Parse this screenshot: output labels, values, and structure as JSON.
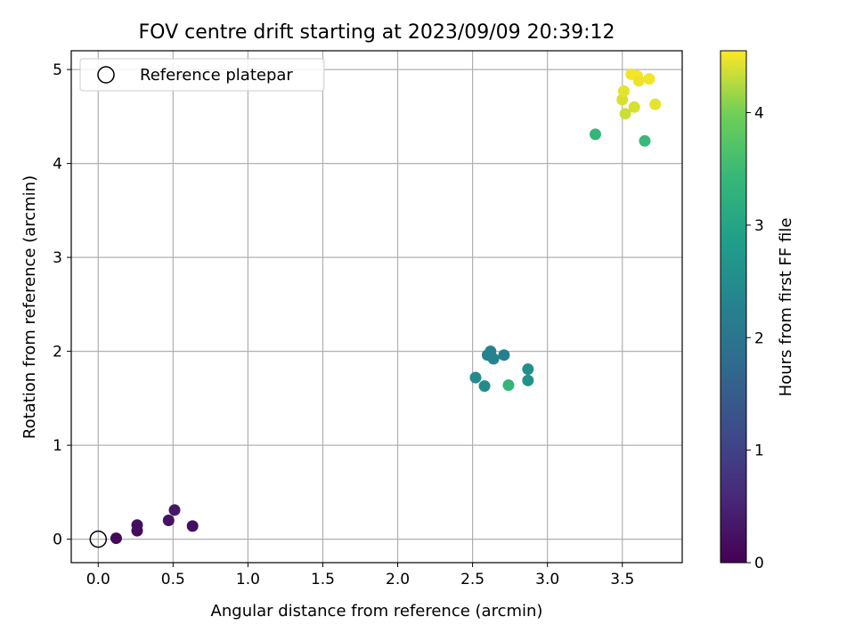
{
  "chart_data": {
    "type": "scatter",
    "title": "FOV centre drift starting at 2023/09/09 20:39:12",
    "xlabel": "Angular distance from reference (arcmin)",
    "ylabel": "Rotation from reference (arcmin)",
    "xlim": [
      -0.18,
      3.9
    ],
    "ylim": [
      -0.25,
      5.2
    ],
    "xticks": [
      0.0,
      0.5,
      1.0,
      1.5,
      2.0,
      2.5,
      3.0,
      3.5
    ],
    "xtick_labels": [
      "0.0",
      "0.5",
      "1.0",
      "1.5",
      "2.0",
      "2.5",
      "3.0",
      "3.5"
    ],
    "yticks": [
      0,
      1,
      2,
      3,
      4,
      5
    ],
    "ytick_labels": [
      "0",
      "1",
      "2",
      "3",
      "4",
      "5"
    ],
    "grid": true,
    "legend": {
      "placement": "upper-left",
      "entries": [
        "Reference platepar"
      ]
    },
    "reference_point": {
      "x": 0.0,
      "y": 0.0,
      "marker": "hollow-circle"
    },
    "colorbar": {
      "label": "Hours from first FF file",
      "colormap": "viridis",
      "range": [
        0,
        4.55
      ],
      "ticks": [
        0,
        1,
        2,
        3,
        4
      ],
      "tick_labels": [
        "0",
        "1",
        "2",
        "3",
        "4"
      ]
    },
    "points": [
      {
        "x": 0.12,
        "y": 0.01,
        "hours": 0.1
      },
      {
        "x": 0.26,
        "y": 0.09,
        "hours": 0.15
      },
      {
        "x": 0.26,
        "y": 0.15,
        "hours": 0.2
      },
      {
        "x": 0.47,
        "y": 0.2,
        "hours": 0.25
      },
      {
        "x": 0.51,
        "y": 0.31,
        "hours": 0.3
      },
      {
        "x": 0.63,
        "y": 0.14,
        "hours": 0.2
      },
      {
        "x": 2.52,
        "y": 1.72,
        "hours": 2.45
      },
      {
        "x": 2.58,
        "y": 1.63,
        "hours": 2.45
      },
      {
        "x": 2.6,
        "y": 1.96,
        "hours": 2.25
      },
      {
        "x": 2.62,
        "y": 2.0,
        "hours": 2.3
      },
      {
        "x": 2.64,
        "y": 1.92,
        "hours": 2.3
      },
      {
        "x": 2.71,
        "y": 1.96,
        "hours": 2.2
      },
      {
        "x": 2.87,
        "y": 1.81,
        "hours": 2.55
      },
      {
        "x": 2.87,
        "y": 1.69,
        "hours": 2.6
      },
      {
        "x": 2.74,
        "y": 1.64,
        "hours": 3.4
      },
      {
        "x": 3.32,
        "y": 4.31,
        "hours": 3.4
      },
      {
        "x": 3.65,
        "y": 4.24,
        "hours": 3.45
      },
      {
        "x": 3.5,
        "y": 4.68,
        "hours": 4.4
      },
      {
        "x": 3.51,
        "y": 4.77,
        "hours": 4.45
      },
      {
        "x": 3.52,
        "y": 4.53,
        "hours": 4.35
      },
      {
        "x": 3.56,
        "y": 4.95,
        "hours": 4.5
      },
      {
        "x": 3.6,
        "y": 4.93,
        "hours": 4.52
      },
      {
        "x": 3.61,
        "y": 4.88,
        "hours": 4.48
      },
      {
        "x": 3.58,
        "y": 4.6,
        "hours": 4.4
      },
      {
        "x": 3.68,
        "y": 4.9,
        "hours": 4.5
      },
      {
        "x": 3.72,
        "y": 4.63,
        "hours": 4.45
      }
    ]
  }
}
